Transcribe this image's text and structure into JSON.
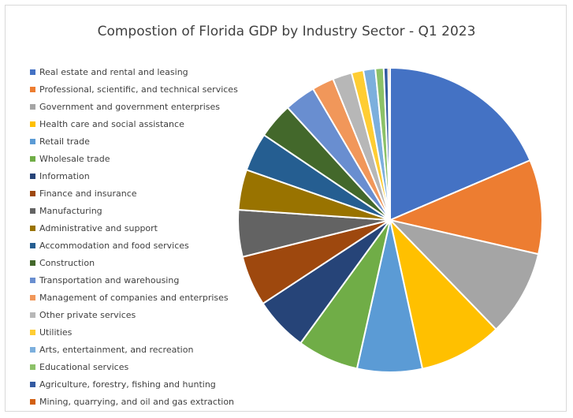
{
  "chart_data": {
    "type": "pie",
    "title": "Compostion of Florida GDP by Industry Sector - Q1 2023",
    "legend_position": "left",
    "categories": [
      "Real estate and rental and leasing",
      "Professional, scientific, and technical services",
      "Government and government enterprises",
      "Health care and social assistance",
      "Retail trade",
      "Wholesale trade",
      "Information",
      "Finance and insurance",
      "Manufacturing",
      "Administrative and support",
      "Accommodation and food services",
      "Construction",
      "Transportation and warehousing",
      "Management of companies and enterprises",
      "Other private services",
      "Utilities",
      "Arts, entertainment, and recreation",
      "Educational services",
      "Agriculture, forestry, fishing and hunting",
      "Mining, quarrying, and oil and gas extraction"
    ],
    "values": [
      19.1,
      10.3,
      9.4,
      9.1,
      7.1,
      6.7,
      5.9,
      5.5,
      5.1,
      4.4,
      4.2,
      3.9,
      3.4,
      2.4,
      2.1,
      1.3,
      1.3,
      0.9,
      0.5,
      0.2
    ],
    "colors": [
      "#4472c4",
      "#ed7d31",
      "#a5a5a5",
      "#ffc000",
      "#5b9bd5",
      "#70ad47",
      "#264478",
      "#9e480e",
      "#636363",
      "#997300",
      "#255e91",
      "#43682b",
      "#698ed0",
      "#f1975a",
      "#b7b7b7",
      "#ffcd33",
      "#7cafdd",
      "#8cc168",
      "#335aa1",
      "#d26012"
    ]
  }
}
